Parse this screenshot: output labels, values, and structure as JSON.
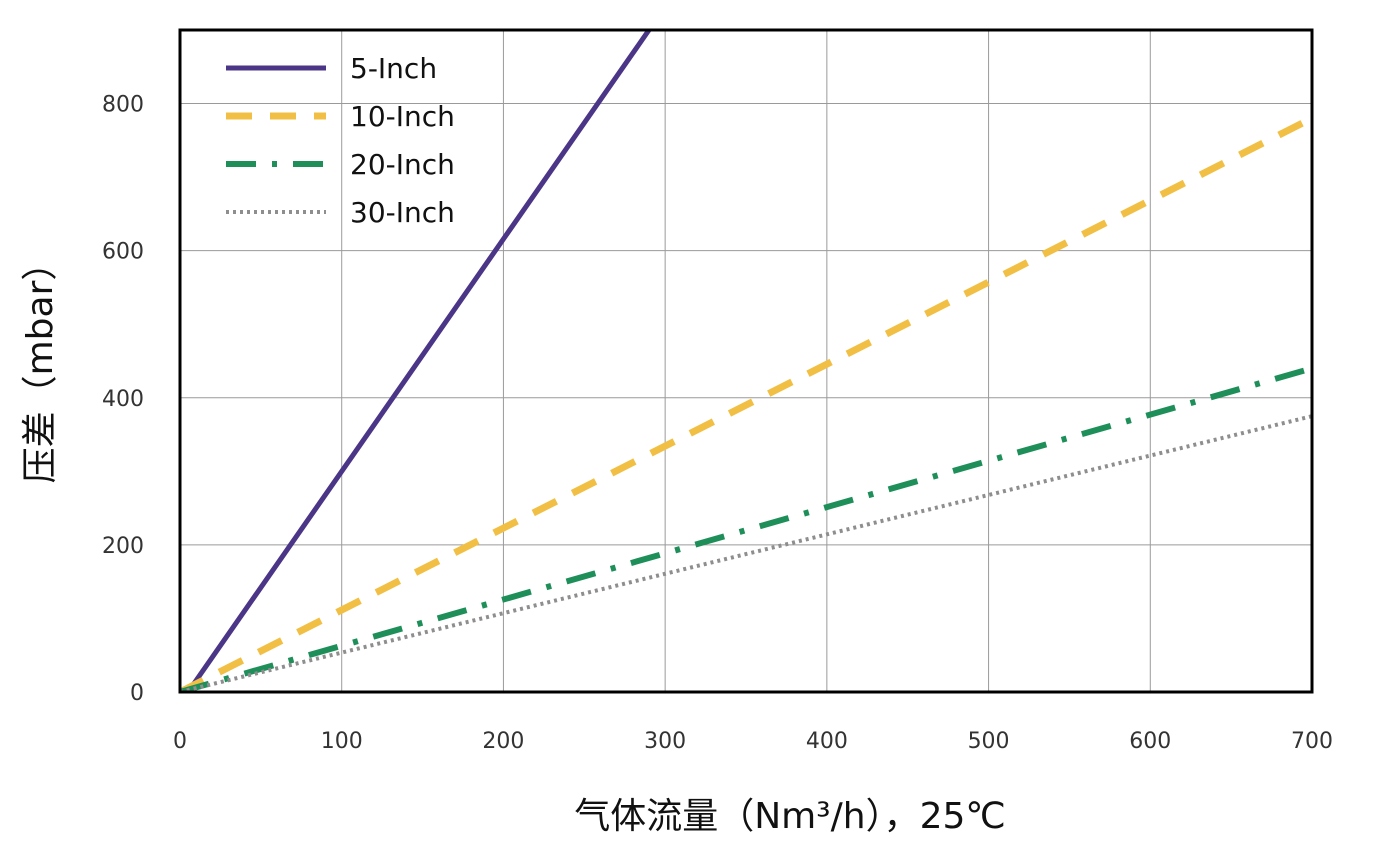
{
  "chart_data": {
    "type": "line",
    "xlabel": "气体流量（Nm³/h），25℃",
    "ylabel": "压差（mbar）",
    "xlim": [
      0,
      700
    ],
    "ylim": [
      0,
      900
    ],
    "x_ticks": [
      0,
      100,
      200,
      300,
      400,
      500,
      600,
      700
    ],
    "y_ticks": [
      0,
      200,
      400,
      600,
      800
    ],
    "grid": true,
    "legend_position": "top-left",
    "series": [
      {
        "name": "5-Inch",
        "color": "#4a3587",
        "style": "solid",
        "x": [
          5,
          290
        ],
        "y": [
          0,
          900
        ]
      },
      {
        "name": "10-Inch",
        "color": "#f2bf45",
        "style": "dashed",
        "x": [
          0,
          700
        ],
        "y": [
          0,
          780
        ]
      },
      {
        "name": "20-Inch",
        "color": "#1f8f5a",
        "style": "dash-dot",
        "x": [
          0,
          700
        ],
        "y": [
          0,
          440
        ]
      },
      {
        "name": "30-Inch",
        "color": "#8e8e8e",
        "style": "dotted",
        "x": [
          0,
          700
        ],
        "y": [
          0,
          375
        ]
      }
    ]
  }
}
